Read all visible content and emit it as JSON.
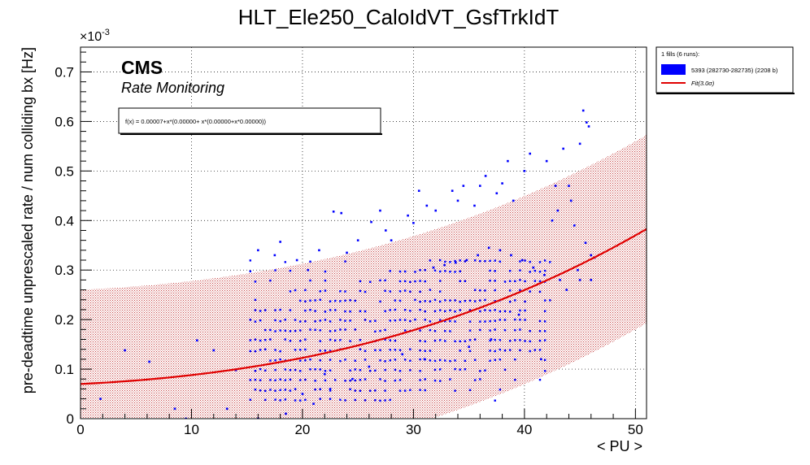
{
  "chart_data": {
    "type": "scatter",
    "title": "HLT_Ele250_CaloIdVT_GsfTrkIdT",
    "xlabel": "< PU >",
    "ylabel": "pre-deadtime unprescaled rate / num colliding bx [Hz]",
    "y_multiplier_label": "×10",
    "y_multiplier_exponent": "-3",
    "xlim": [
      0,
      51
    ],
    "ylim": [
      0,
      0.75
    ],
    "x_ticks": [
      0,
      10,
      20,
      30,
      40,
      50
    ],
    "x_tick_labels": [
      "0",
      "10",
      "20",
      "30",
      "40",
      "50"
    ],
    "y_ticks": [
      0,
      0.1,
      0.2,
      0.3,
      0.4,
      0.5,
      0.6,
      0.7
    ],
    "y_tick_labels": [
      "0",
      "0.1",
      "0.2",
      "0.3",
      "0.4",
      "0.5",
      "0.6",
      "0.7"
    ],
    "grid": true,
    "cms_label": "CMS",
    "cms_sublabel": "Rate Monitoring",
    "fit_formula_text": "f(x) = 0.00007+x*(0.00000+ x*(0.00000+x*0.00000))",
    "legend": {
      "placement": "top-right",
      "header": "1 fills (6 runs):",
      "entries": [
        {
          "label": "5393 (282730-282735) (2208 b)",
          "kind": "box",
          "color": "#0000ff"
        },
        {
          "label": "Fit(3.0σ)",
          "kind": "line",
          "color": "#e00000"
        }
      ]
    },
    "series": [
      {
        "name": "5393 (282730-282735) (2208 b)",
        "color": "#0000ff",
        "points": [
          [
            1.8,
            0.04
          ],
          [
            4.0,
            0.138
          ],
          [
            6.2,
            0.115
          ],
          [
            8.5,
            0.02
          ],
          [
            9.5,
            0.0
          ],
          [
            10.5,
            0.158
          ],
          [
            12.0,
            0.138
          ],
          [
            13.2,
            0.02
          ],
          [
            14.0,
            0.098
          ],
          [
            18.0,
            0.357
          ],
          [
            22.8,
            0.418
          ],
          [
            23.5,
            0.415
          ],
          [
            26.2,
            0.397
          ],
          [
            28.0,
            0.36
          ],
          [
            30.0,
            0.395
          ],
          [
            32.0,
            0.42
          ],
          [
            34.0,
            0.44
          ],
          [
            36.0,
            0.47
          ],
          [
            38.5,
            0.52
          ],
          [
            40.5,
            0.535
          ],
          [
            42.0,
            0.52
          ],
          [
            43.5,
            0.545
          ],
          [
            45.0,
            0.555
          ],
          [
            45.3,
            0.622
          ],
          [
            45.6,
            0.598
          ],
          [
            45.8,
            0.59
          ],
          [
            44.0,
            0.47
          ],
          [
            46.0,
            0.33
          ],
          [
            46.3,
            0.325
          ],
          [
            45.5,
            0.355
          ],
          [
            44.5,
            0.39
          ],
          [
            41.5,
            0.12
          ],
          [
            43.0,
            0.42
          ],
          [
            42.5,
            0.4
          ],
          [
            39.0,
            0.44
          ],
          [
            37.5,
            0.455
          ],
          [
            35.5,
            0.43
          ],
          [
            33.5,
            0.46
          ],
          [
            31.2,
            0.43
          ],
          [
            29.5,
            0.41
          ],
          [
            27.5,
            0.38
          ],
          [
            25.0,
            0.36
          ],
          [
            21.5,
            0.34
          ],
          [
            19.5,
            0.32
          ],
          [
            17.5,
            0.33
          ],
          [
            16.0,
            0.34
          ],
          [
            20.5,
            0.3
          ],
          [
            24.0,
            0.335
          ],
          [
            36.5,
            0.49
          ],
          [
            40.0,
            0.5
          ],
          [
            42.8,
            0.47
          ],
          [
            44.2,
            0.44
          ],
          [
            38.0,
            0.475
          ],
          [
            34.5,
            0.47
          ],
          [
            30.5,
            0.46
          ],
          [
            27.0,
            0.42
          ],
          [
            22.0,
            0.09
          ],
          [
            20.0,
            0.05
          ],
          [
            18.5,
            0.01
          ],
          [
            35.0,
            0.145
          ],
          [
            37.0,
            0.16
          ],
          [
            39.5,
            0.21
          ],
          [
            43.8,
            0.26
          ],
          [
            45.0,
            0.28
          ],
          [
            46.0,
            0.28
          ],
          [
            29.0,
            0.13
          ],
          [
            31.0,
            0.12
          ],
          [
            26.0,
            0.105
          ],
          [
            24.5,
            0.08
          ],
          [
            21.0,
            0.03
          ],
          [
            16.0,
            0.0
          ],
          [
            22.5,
            0.06
          ],
          [
            44.8,
            0.3
          ],
          [
            43.2,
            0.28
          ],
          [
            41.8,
            0.29
          ],
          [
            40.8,
            0.305
          ],
          [
            39.8,
            0.32
          ],
          [
            38.8,
            0.33
          ],
          [
            37.8,
            0.34
          ],
          [
            36.8,
            0.345
          ],
          [
            35.8,
            0.33
          ],
          [
            34.8,
            0.32
          ],
          [
            33.8,
            0.315
          ],
          [
            32.8,
            0.31
          ],
          [
            31.8,
            0.305
          ]
        ]
      }
    ],
    "fit": {
      "name": "Fit(3.0σ)",
      "color": "#e00000",
      "coefficients": [
        7e-05,
        1.1e-06,
        6.3e-08,
        7e-10
      ],
      "band_sigma_width": 0.19,
      "band_color": "#c00000",
      "x_range": [
        0,
        51
      ]
    }
  }
}
